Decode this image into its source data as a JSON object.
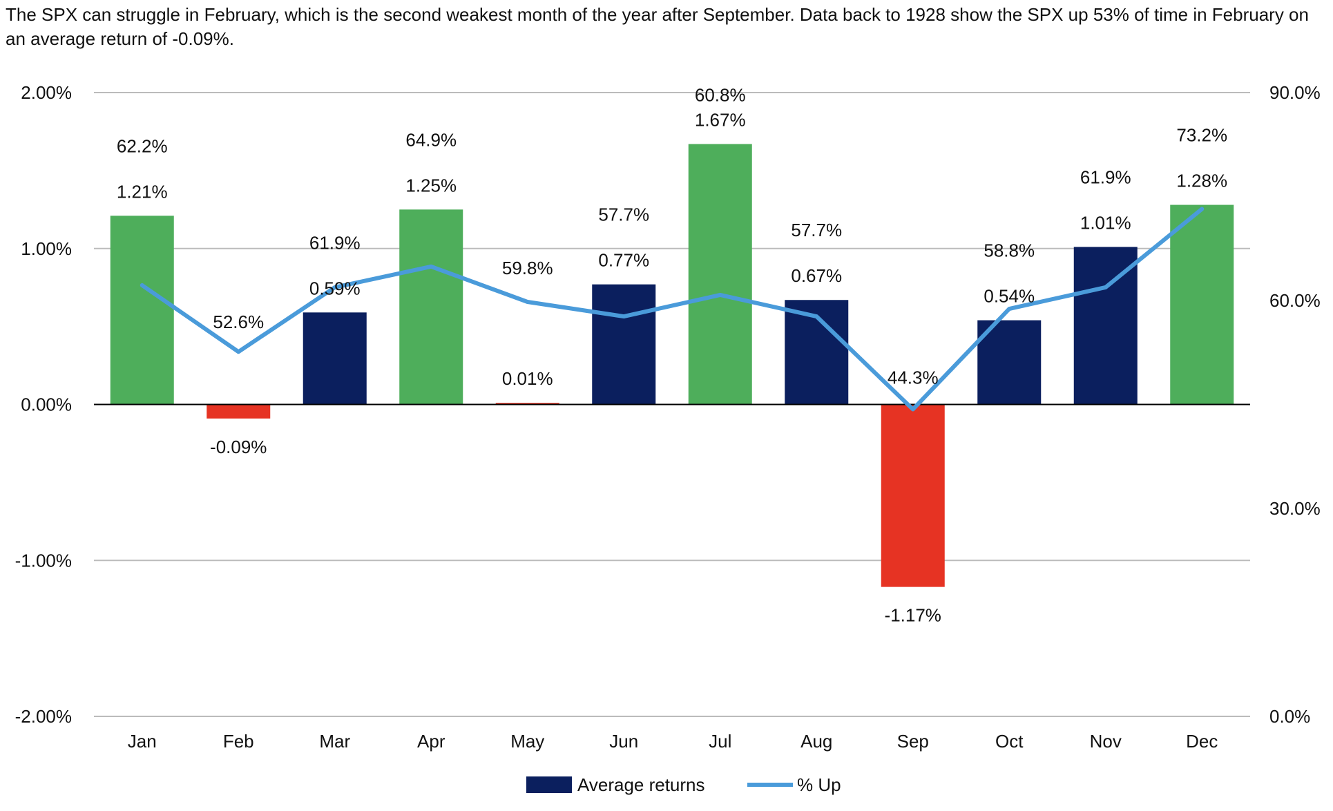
{
  "subtitle": "The SPX can struggle in February, which is the second weakest month of the year after September. Data back to 1928 show the SPX up 53% of time in February on an average return of -0.09%.",
  "colors": {
    "positive_green": "#4EAE5B",
    "positive_navy": "#0B1F5E",
    "negative": "#E63323",
    "line": "#4A9BDA",
    "gridline": "#BBBBBB",
    "zero_line": "#000000"
  },
  "chart_data": {
    "type": "bar",
    "categories": [
      "Jan",
      "Feb",
      "Mar",
      "Apr",
      "May",
      "Jun",
      "Jul",
      "Aug",
      "Sep",
      "Oct",
      "Nov",
      "Dec"
    ],
    "series": [
      {
        "name": "Average returns",
        "type": "bar",
        "axis": "left",
        "values": [
          1.21,
          -0.09,
          0.59,
          1.25,
          0.01,
          0.77,
          1.67,
          0.67,
          -1.17,
          0.54,
          1.01,
          1.28
        ],
        "labels": [
          "1.21%",
          "-0.09%",
          "0.59%",
          "1.25%",
          "0.01%",
          "0.77%",
          "1.67%",
          "0.67%",
          "-1.17%",
          "0.54%",
          "1.01%",
          "1.28%"
        ],
        "bar_colors": [
          "#4EAE5B",
          "#E63323",
          "#0B1F5E",
          "#4EAE5B",
          "#E63323",
          "#0B1F5E",
          "#4EAE5B",
          "#0B1F5E",
          "#E63323",
          "#0B1F5E",
          "#0B1F5E",
          "#4EAE5B"
        ]
      },
      {
        "name": "% Up",
        "type": "line",
        "axis": "right",
        "values": [
          62.2,
          52.6,
          61.9,
          64.9,
          59.8,
          57.7,
          60.8,
          57.7,
          44.3,
          58.8,
          61.9,
          73.2
        ],
        "labels": [
          "62.2%",
          "52.6%",
          "61.9%",
          "64.9%",
          "59.8%",
          "57.7%",
          "60.8%",
          "57.7%",
          "44.3%",
          "58.8%",
          "61.9%",
          "73.2%"
        ]
      }
    ],
    "y_left": {
      "range": [
        -2,
        2
      ],
      "ticks": [
        2,
        1,
        0,
        -1,
        -2
      ],
      "tick_labels": [
        "2.00%",
        "1.00%",
        "0.00%",
        "-1.00%",
        "-2.00%"
      ]
    },
    "y_right": {
      "range": [
        0,
        90
      ],
      "ticks": [
        90,
        60,
        30,
        0
      ],
      "tick_labels": [
        "90.0%",
        "60.0%",
        "30.0%",
        "0.0%"
      ]
    },
    "grid": true,
    "legend_position": "bottom-center",
    "legend": [
      {
        "label": "Average returns",
        "type": "bar",
        "color": "#0B1F5E"
      },
      {
        "label": "% Up",
        "type": "line",
        "color": "#4A9BDA"
      }
    ]
  }
}
